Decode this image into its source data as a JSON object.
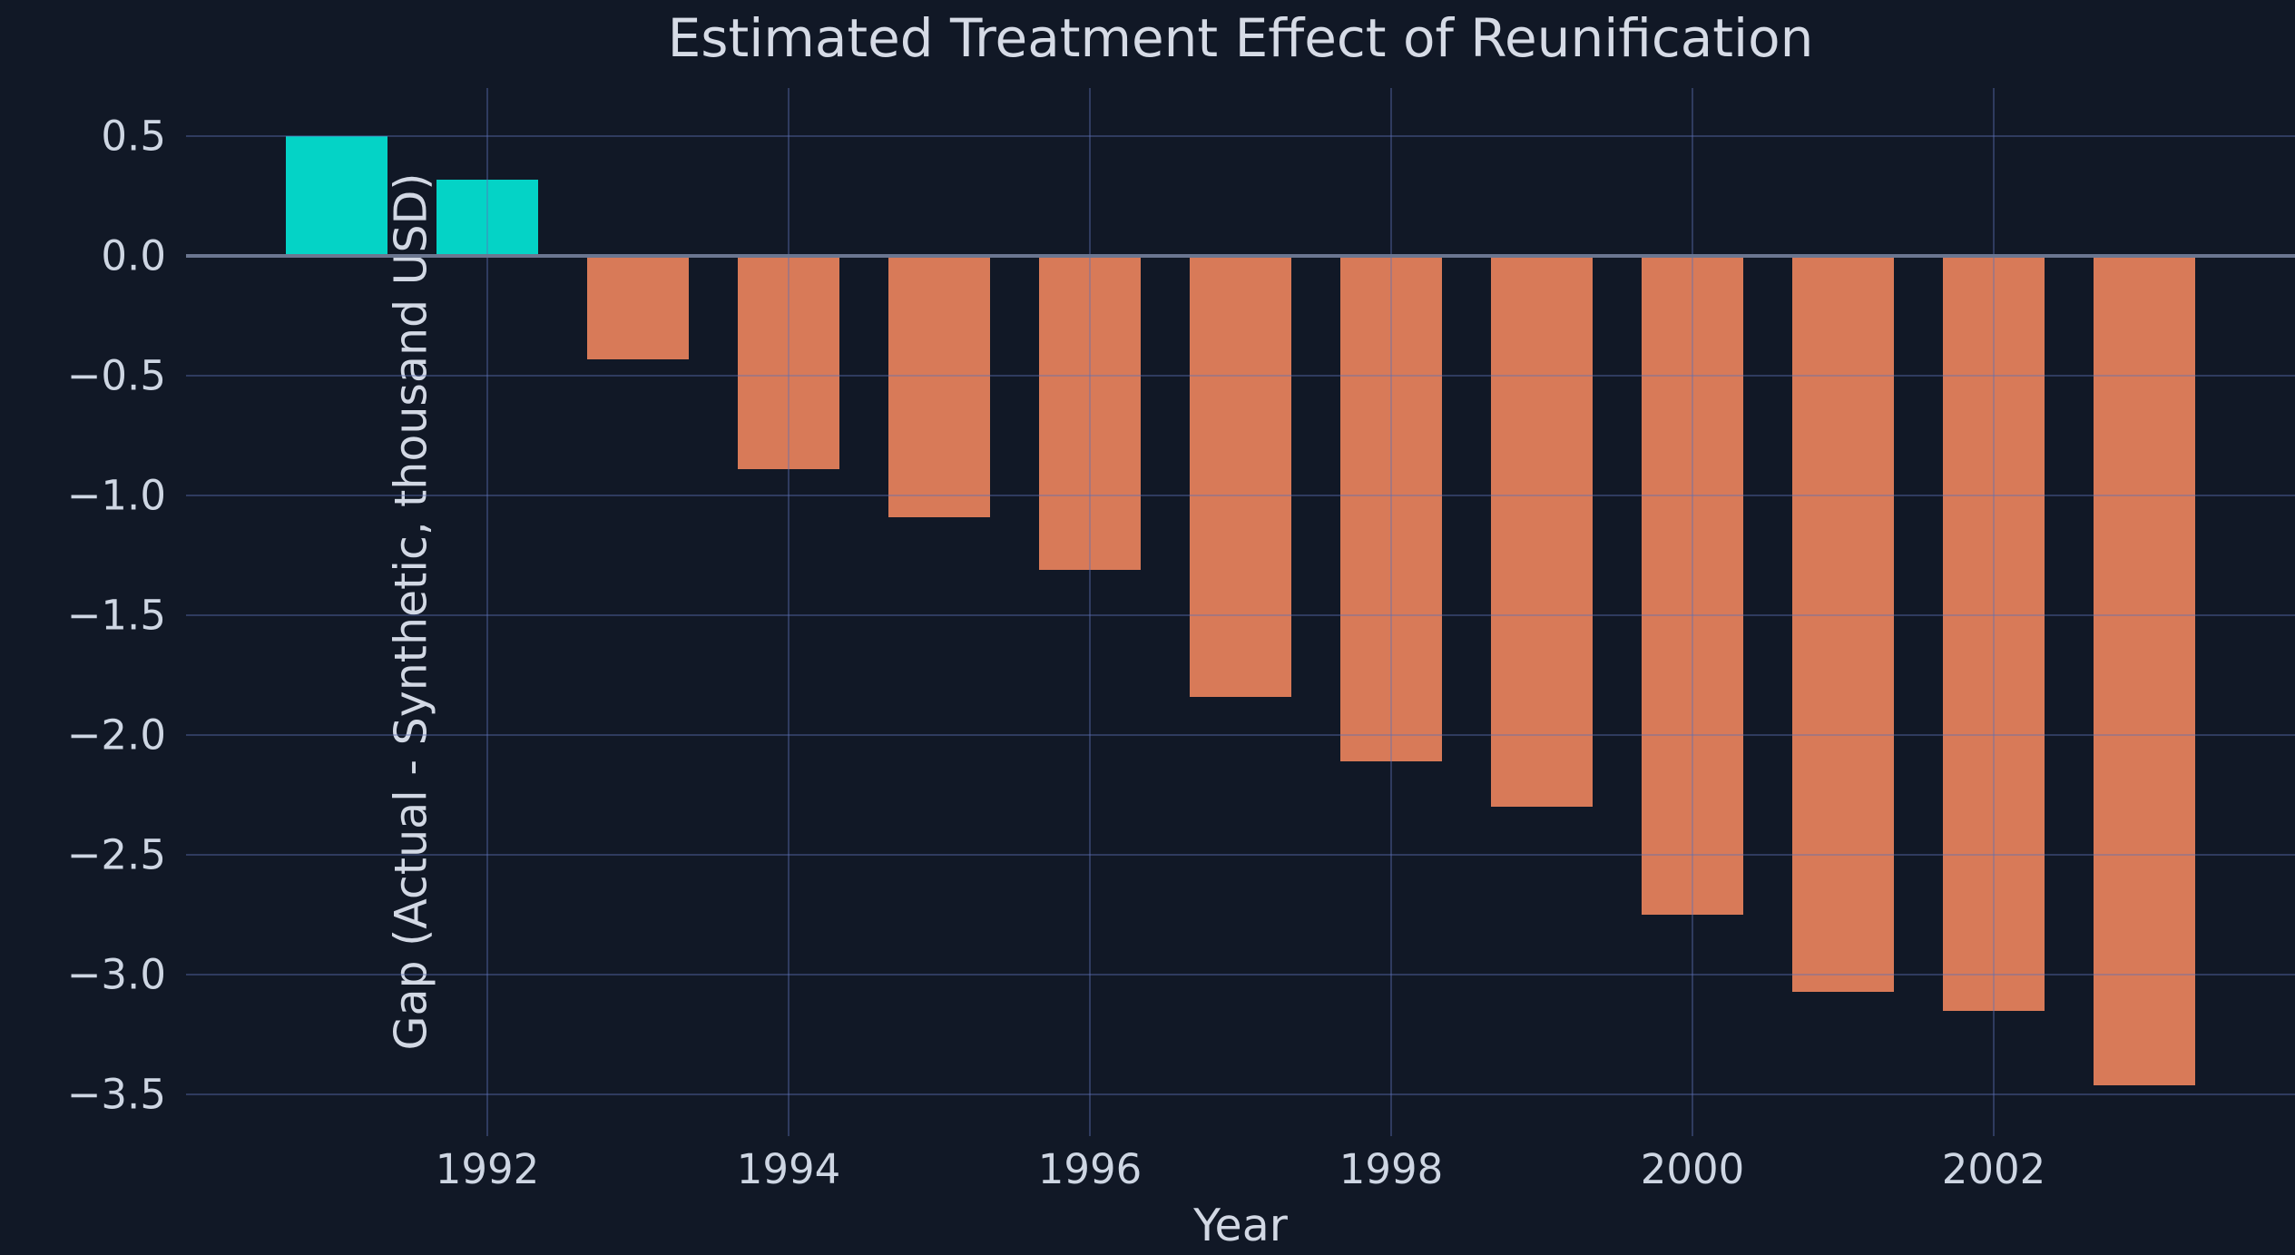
{
  "chart_data": {
    "type": "bar",
    "title": "Estimated Treatment Effect of Reunification",
    "xlabel": "Year",
    "ylabel": "Gap (Actual - Synthetic, thousand USD)",
    "categories": [
      1991,
      1992,
      1993,
      1994,
      1995,
      1996,
      1997,
      1998,
      1999,
      2000,
      2001,
      2002,
      2003
    ],
    "values": [
      0.5,
      0.32,
      -0.43,
      -0.89,
      -1.09,
      -1.31,
      -1.84,
      -2.11,
      -2.3,
      -2.75,
      -3.07,
      -3.15,
      -3.46
    ],
    "positive_color": "#04d3c6",
    "negative_color": "#d87a58",
    "x_ticks": [
      1992,
      1994,
      1996,
      1998,
      2000,
      2002
    ],
    "y_ticks": [
      0.5,
      0.0,
      -0.5,
      -1.0,
      -1.5,
      -2.0,
      -2.5,
      -3.0,
      -3.5
    ],
    "xlim": [
      1990,
      2004
    ],
    "ylim": [
      -3.674,
      0.701
    ],
    "bar_width_years": 0.675,
    "grid": true,
    "legend": null,
    "background_color": "#111826",
    "grid_color": "rgba(92, 112, 182, 0.40)",
    "zero_line_color": "#6b7690",
    "text_color": "#d2d8e4"
  }
}
